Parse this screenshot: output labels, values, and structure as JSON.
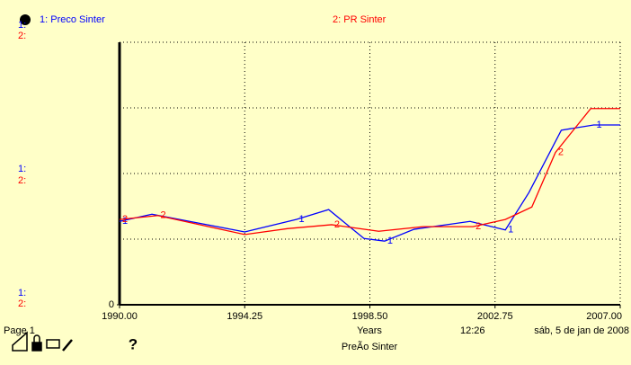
{
  "chart_data": {
    "type": "line",
    "xlim": [
      1990,
      2007
    ],
    "xticks": [
      {
        "value": 1990,
        "label": "1990.00"
      },
      {
        "value": 1994.25,
        "label": "1994.25"
      },
      {
        "value": 1998.5,
        "label": "1998.50"
      },
      {
        "value": 2002.75,
        "label": "2002.75"
      },
      {
        "value": 2007,
        "label": "2007.00"
      }
    ],
    "ylim": [
      0,
      4
    ],
    "yticks": [
      0
    ],
    "ygrid": [
      1,
      2,
      3
    ],
    "xlabel": "Years",
    "scale_labels": [
      "1:",
      "2:"
    ],
    "series": [
      {
        "name": "1: Preco Sinter",
        "marker": "1",
        "color": "#0000ff",
        "x": [
          1990,
          1991.1,
          1994.25,
          1996,
          1997.1,
          1998.3,
          1999,
          2000,
          2001.9,
          2003.1,
          2003.9,
          2005,
          2006.1,
          2007
        ],
        "values": [
          1.27,
          1.38,
          1.11,
          1.3,
          1.45,
          1.01,
          0.97,
          1.15,
          1.27,
          1.14,
          1.71,
          2.66,
          2.74,
          2.74
        ]
      },
      {
        "name": "2: PR Sinter",
        "marker": "2",
        "color": "#ff0000",
        "x": [
          1990,
          1991.3,
          1994.25,
          1995.7,
          1997.2,
          1998.8,
          2000.3,
          2002,
          2003.1,
          2004,
          2004.8,
          2006,
          2007
        ],
        "values": [
          1.3,
          1.36,
          1.07,
          1.16,
          1.22,
          1.12,
          1.19,
          1.19,
          1.3,
          1.49,
          2.32,
          2.99,
          2.99
        ]
      }
    ]
  },
  "footer": {
    "page": "Page 1",
    "time": "12:26",
    "date": "sáb, 5 de jan de 2008",
    "name": "PreÃo Sinter"
  }
}
